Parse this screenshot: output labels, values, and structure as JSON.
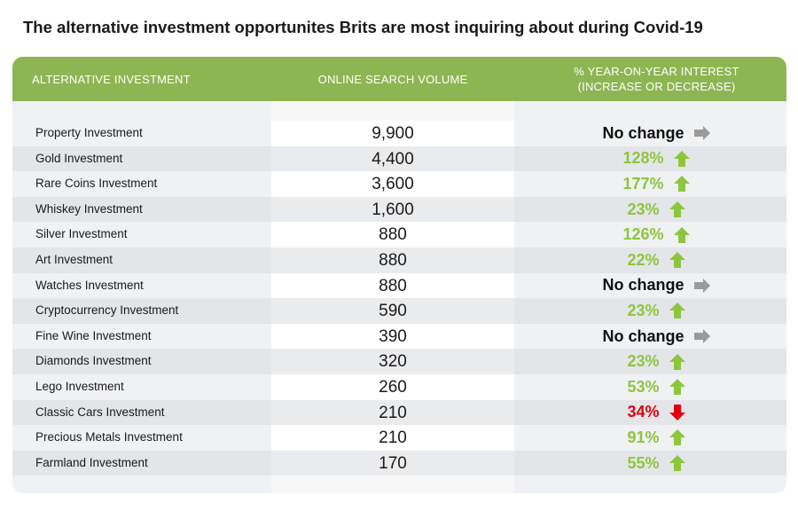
{
  "title": "The alternative investment opportunites Brits are most inquiring about during Covid-19",
  "colors": {
    "header": "#8cb652",
    "increase": "#8cc63f",
    "decrease": "#e2000f",
    "no_change": "#111111",
    "neutral_arrow": "#9a9a9a"
  },
  "icons": {
    "increase": "arrow-up-icon",
    "decrease": "arrow-down-icon",
    "no_change": "arrow-right-icon"
  },
  "chart_data": {
    "type": "table",
    "columns": [
      "ALTERNATIVE INVESTMENT",
      "ONLINE SEARCH VOLUME",
      "% YEAR-ON-YEAR INTEREST",
      "(INCREASE OR DECREASE)"
    ],
    "rows": [
      {
        "name": "Property Investment",
        "volume": "9,900",
        "change": "No change",
        "direction": "none"
      },
      {
        "name": "Gold Investment",
        "volume": "4,400",
        "change": "128%",
        "direction": "up"
      },
      {
        "name": "Rare Coins Investment",
        "volume": "3,600",
        "change": "177%",
        "direction": "up"
      },
      {
        "name": "Whiskey Investment",
        "volume": "1,600",
        "change": "23%",
        "direction": "up"
      },
      {
        "name": "Silver Investment",
        "volume": "880",
        "change": "126%",
        "direction": "up"
      },
      {
        "name": "Art Investment",
        "volume": "880",
        "change": "22%",
        "direction": "up"
      },
      {
        "name": "Watches Investment",
        "volume": "880",
        "change": "No change",
        "direction": "none"
      },
      {
        "name": "Cryptocurrency Investment",
        "volume": "590",
        "change": "23%",
        "direction": "up"
      },
      {
        "name": "Fine Wine Investment",
        "volume": "390",
        "change": "No change",
        "direction": "none"
      },
      {
        "name": "Diamonds Investment",
        "volume": "320",
        "change": "23%",
        "direction": "up"
      },
      {
        "name": "Lego Investment",
        "volume": "260",
        "change": "53%",
        "direction": "up"
      },
      {
        "name": "Classic Cars Investment",
        "volume": "210",
        "change": "34%",
        "direction": "down"
      },
      {
        "name": "Precious Metals Investment",
        "volume": "210",
        "change": "91%",
        "direction": "up"
      },
      {
        "name": "Farmland Investment",
        "volume": "170",
        "change": "55%",
        "direction": "up"
      }
    ]
  }
}
